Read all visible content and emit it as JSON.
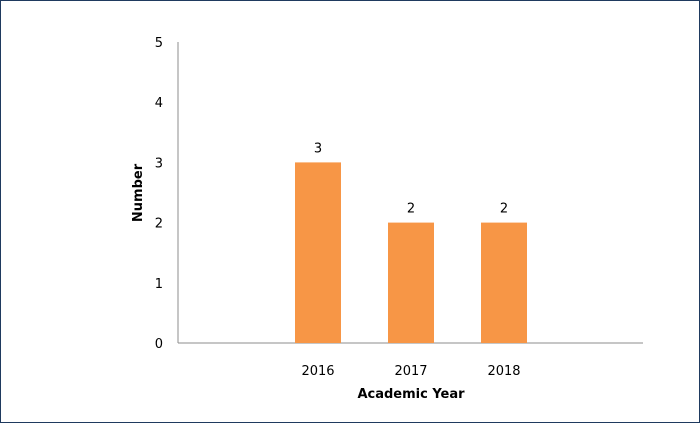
{
  "chart_data": {
    "type": "bar",
    "categories": [
      "2016",
      "2017",
      "2018"
    ],
    "values": [
      3,
      2,
      2
    ],
    "data_labels": [
      "3",
      "2",
      "2"
    ],
    "title": "",
    "xlabel": "Academic Year",
    "ylabel": "Number",
    "ylim": [
      0,
      5
    ],
    "yticks": [
      "0",
      "1",
      "2",
      "3",
      "4",
      "5"
    ],
    "grid": false,
    "bar_color": "#f79646"
  }
}
